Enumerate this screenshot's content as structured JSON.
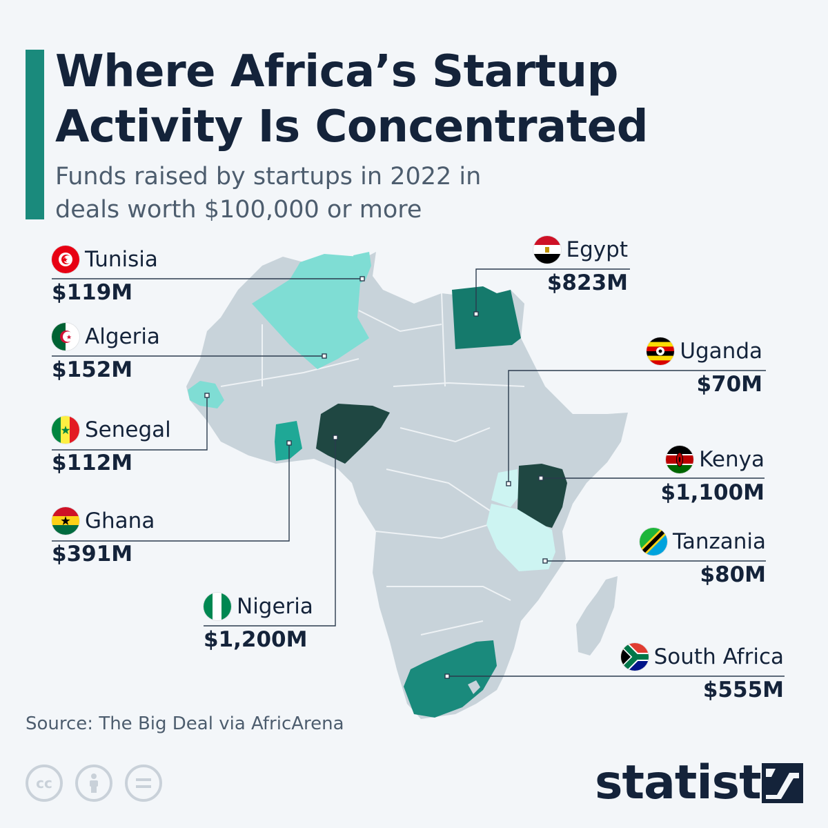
{
  "header": {
    "title": "Where Africa’s Startup Activity Is Concentrated",
    "subtitle": "Funds raised by startups in 2022 in deals worth $100,000 or more"
  },
  "colors": {
    "accent": "#1a8a7c",
    "base_land": "#c8d3da",
    "border": "#eef2f5",
    "lightest": "#cdf4f2",
    "light": "#7fddd4",
    "mid": "#1fa896",
    "dark": "#157a6c",
    "darkest": "#1f4742",
    "text": "#14233a"
  },
  "countries": [
    {
      "key": "tunisia",
      "name": "Tunisia",
      "value": "$119M",
      "flag": "tunisia-flag-icon"
    },
    {
      "key": "algeria",
      "name": "Algeria",
      "value": "$152M",
      "flag": "algeria-flag-icon"
    },
    {
      "key": "senegal",
      "name": "Senegal",
      "value": "$112M",
      "flag": "senegal-flag-icon"
    },
    {
      "key": "ghana",
      "name": "Ghana",
      "value": "$391M",
      "flag": "ghana-flag-icon"
    },
    {
      "key": "nigeria",
      "name": "Nigeria",
      "value": "$1,200M",
      "flag": "nigeria-flag-icon"
    },
    {
      "key": "egypt",
      "name": "Egypt",
      "value": "$823M",
      "flag": "egypt-flag-icon"
    },
    {
      "key": "uganda",
      "name": "Uganda",
      "value": "$70M",
      "flag": "uganda-flag-icon"
    },
    {
      "key": "kenya",
      "name": "Kenya",
      "value": "$1,100M",
      "flag": "kenya-flag-icon"
    },
    {
      "key": "tanzania",
      "name": "Tanzania",
      "value": "$80M",
      "flag": "tanzania-flag-icon"
    },
    {
      "key": "south_africa",
      "name": "South Africa",
      "value": "$555M",
      "flag": "south-africa-flag-icon"
    }
  ],
  "source": "Source: The Big Deal via AfricArena",
  "footer": {
    "license_icons": [
      "cc-icon",
      "attribution-icon",
      "no-derivatives-icon"
    ],
    "cc_text": "cc",
    "logo_text": "statista"
  }
}
